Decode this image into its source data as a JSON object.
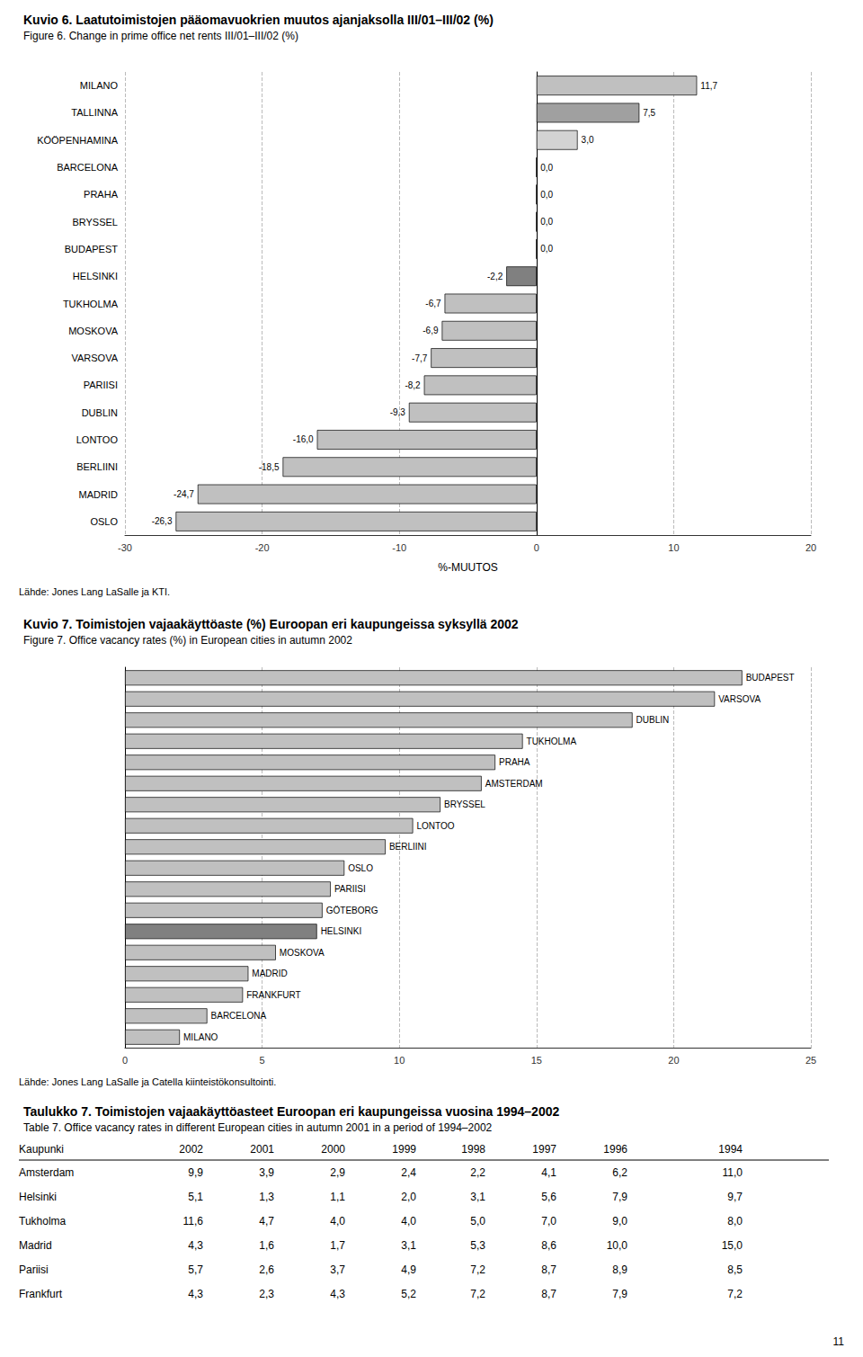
{
  "chart_data": [
    {
      "type": "bar",
      "orientation": "horizontal",
      "title": "Kuvio 6. Laatutoimistojen pääomavuokrien muutos ajanjaksolla III/01–III/02 (%)",
      "subtitle": "Figure 6. Change in prime office net rents III/01–III/02 (%)",
      "annotations": [
        "Lähde: Jones Lang LaSalle ja KTI."
      ],
      "categories": [
        "OSLO",
        "MADRID",
        "BERLIINI",
        "LONTOO",
        "DUBLIN",
        "PARIISI",
        "VARSOVA",
        "MOSKOVA",
        "TUKHOLMA",
        "HELSINKI",
        "BUDAPEST",
        "BRYSSEL",
        "PRAHA",
        "BARCELONA",
        "KÖÖPENHAMINA",
        "TALLINNA",
        "MILANO"
      ],
      "values": [
        -26.3,
        -24.7,
        -18.5,
        -16.0,
        -9.3,
        -8.2,
        -7.7,
        -6.9,
        -6.7,
        -2.2,
        0.0,
        0.0,
        0.0,
        0.0,
        3.0,
        7.5,
        11.7
      ],
      "value_labels": [
        "-26,3",
        "-24,7",
        "-18,5",
        "-16,0",
        "-9,3",
        "-8,2",
        "-7,7",
        "-6,9",
        "-6,7",
        "-2,2",
        "0,0",
        "0,0",
        "0,0",
        "0,0",
        "3,0",
        "7,5",
        "11,7"
      ],
      "data_labels": true,
      "colors": [
        "#c0c0c0",
        "#c0c0c0",
        "#c0c0c0",
        "#c0c0c0",
        "#c0c0c0",
        "#c0c0c0",
        "#c0c0c0",
        "#c0c0c0",
        "#c0c0c0",
        "#808080",
        "#c0c0c0",
        "#c0c0c0",
        "#c0c0c0",
        "#c0c0c0",
        "#d3d3d3",
        "#a0a0a0",
        "#c0c0c0"
      ],
      "xlim": [
        -30,
        20
      ],
      "xticks": [
        -30,
        -20,
        -10,
        0,
        10,
        20
      ],
      "xlabel": "%-MUUTOS",
      "grid": true
    },
    {
      "type": "bar",
      "orientation": "horizontal",
      "title": "Kuvio 7. Toimistojen vajaakäyttöaste (%) Euroopan eri kaupungeissa syksyllä 2002",
      "subtitle": "Figure 7. Office vacancy rates (%) in European cities in autumn 2002",
      "annotations": [
        "Lähde: Jones Lang LaSalle ja Catella kiinteistökonsultointi."
      ],
      "categories": [
        "MILANO",
        "BARCELONA",
        "FRANKFURT",
        "MADRID",
        "MOSKOVA",
        "HELSINKI",
        "GÖTEBORG",
        "PARIISI",
        "OSLO",
        "BERLIINI",
        "LONTOO",
        "BRYSSEL",
        "AMSTERDAM",
        "PRAHA",
        "TUKHOLMA",
        "DUBLIN",
        "VARSOVA",
        "BUDAPEST"
      ],
      "values": [
        2.0,
        3.0,
        4.3,
        4.5,
        5.5,
        7.0,
        7.2,
        7.5,
        8.0,
        9.5,
        10.5,
        11.5,
        13.0,
        13.5,
        14.5,
        18.5,
        21.5,
        22.5
      ],
      "colors": [
        "#c0c0c0",
        "#c0c0c0",
        "#c0c0c0",
        "#c0c0c0",
        "#c0c0c0",
        "#808080",
        "#c0c0c0",
        "#c0c0c0",
        "#c0c0c0",
        "#c0c0c0",
        "#c0c0c0",
        "#c0c0c0",
        "#c0c0c0",
        "#c0c0c0",
        "#c0c0c0",
        "#c0c0c0",
        "#c0c0c0",
        "#c0c0c0"
      ],
      "xlim": [
        0,
        25
      ],
      "xticks": [
        0,
        5,
        10,
        15,
        20,
        25
      ],
      "tick_labels": "x",
      "grid": true
    },
    {
      "type": "table",
      "title": "Taulukko 7. Toimistojen vajaakäyttöasteet Euroopan eri kaupungeissa vuosina 1994–2002",
      "subtitle": "Table 7. Office vacancy rates in different European cities in autumn 2001 in a period of 1994–2002",
      "columns": [
        "Kaupunki",
        "2002",
        "2001",
        "2000",
        "1999",
        "1998",
        "1997",
        "1996",
        "1994"
      ],
      "rows": [
        [
          "Amsterdam",
          "9,9",
          "3,9",
          "2,9",
          "2,4",
          "2,2",
          "4,1",
          "6,2",
          "11,0"
        ],
        [
          "Helsinki",
          "5,1",
          "1,3",
          "1,1",
          "2,0",
          "3,1",
          "5,6",
          "7,9",
          "9,7"
        ],
        [
          "Tukholma",
          "11,6",
          "4,7",
          "4,0",
          "4,0",
          "5,0",
          "7,0",
          "9,0",
          "8,0"
        ],
        [
          "Madrid",
          "4,3",
          "1,6",
          "1,7",
          "3,1",
          "5,3",
          "8,6",
          "10,0",
          "15,0"
        ],
        [
          "Pariisi",
          "5,7",
          "2,6",
          "3,7",
          "4,9",
          "7,2",
          "8,7",
          "8,9",
          "8,5"
        ],
        [
          "Frankfurt",
          "4,3",
          "2,3",
          "4,3",
          "5,2",
          "7,2",
          "8,7",
          "7,9",
          "7,2"
        ]
      ],
      "annotations": [
        "11"
      ]
    }
  ]
}
